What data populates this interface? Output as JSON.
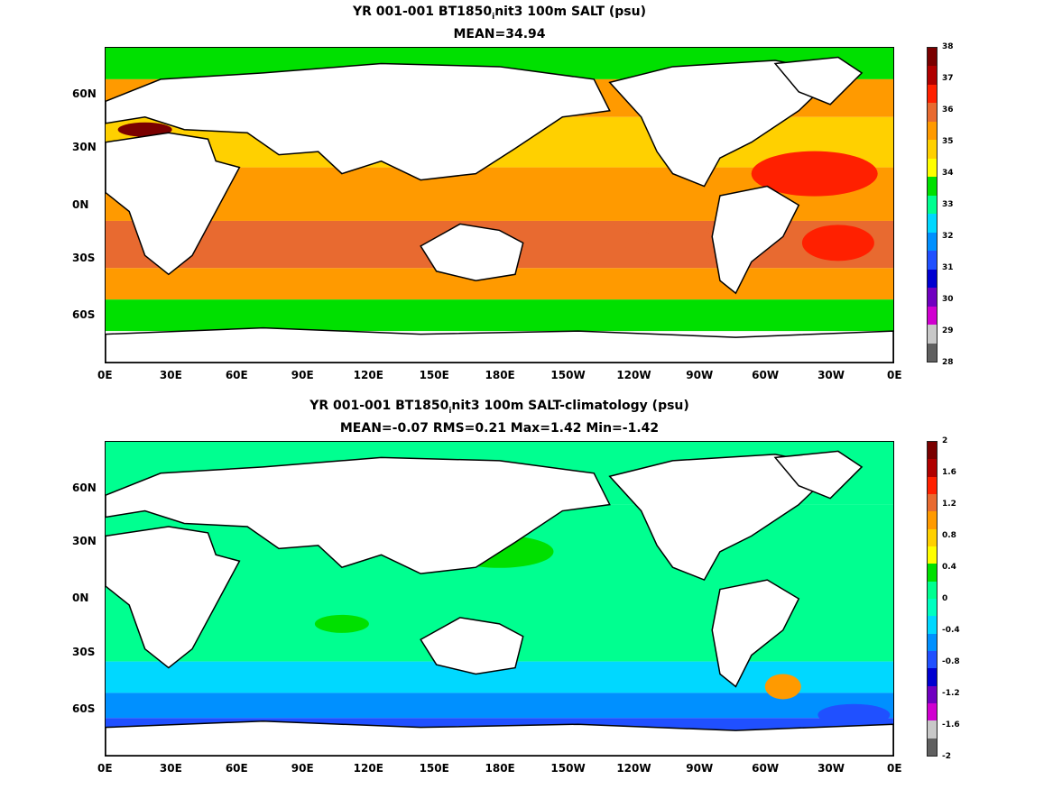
{
  "panels": [
    {
      "title": "YR 001-001 BT1850",
      "title_sub": "i",
      "title_rest": "nit3 100m SALT (psu)",
      "subtitle": "MEAN=34.94",
      "colorbar": {
        "ticks": [
          "38",
          "37",
          "36",
          "35",
          "34",
          "33",
          "32",
          "31",
          "30",
          "29",
          "28"
        ],
        "colors": [
          "#7a0000",
          "#b00000",
          "#ff2000",
          "#e86a30",
          "#ff9a00",
          "#ffd000",
          "#ffff00",
          "#00e000",
          "#00ff90",
          "#00d8ff",
          "#0090ff",
          "#2050ff",
          "#0000d0",
          "#7000c0",
          "#d000d0",
          "#c8c8c8",
          "#606060"
        ]
      },
      "fill": [
        "#ff9a00",
        "#ffd000",
        "#00e000",
        "#00ff90",
        "#e86a30",
        "#ff2000"
      ]
    },
    {
      "title": "YR 001-001 BT1850",
      "title_sub": "i",
      "title_rest": "nit3 100m SALT-climatology (psu)",
      "subtitle": "MEAN=-0.07   RMS=0.21   Max=1.42   Min=-1.42",
      "colorbar": {
        "ticks": [
          "2",
          "1.6",
          "1.2",
          "0.8",
          "0.4",
          "0",
          "-0.4",
          "-0.8",
          "-1.2",
          "-1.6",
          "-2"
        ],
        "colors": [
          "#7a0000",
          "#b00000",
          "#ff2000",
          "#e86a30",
          "#ff9a00",
          "#ffd000",
          "#ffff00",
          "#00e000",
          "#00ff90",
          "#00ffc0",
          "#00d8ff",
          "#0090ff",
          "#2050ff",
          "#0000d0",
          "#7000c0",
          "#d000d0",
          "#c8c8c8",
          "#606060"
        ]
      },
      "fill": [
        "#00ff90",
        "#00e000",
        "#00d8ff",
        "#0090ff",
        "#2050ff",
        "#ff9a00"
      ]
    }
  ],
  "x_ticks": [
    "0E",
    "30E",
    "60E",
    "90E",
    "120E",
    "150E",
    "180E",
    "150W",
    "120W",
    "90W",
    "60W",
    "30W",
    "0E"
  ],
  "y_ticks": [
    "60N",
    "30N",
    "0N",
    "30S",
    "60S"
  ]
}
